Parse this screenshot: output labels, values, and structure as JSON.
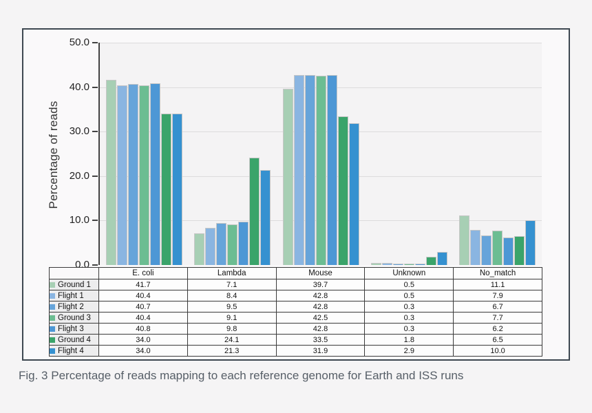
{
  "figure": {
    "caption": "Fig. 3 Percentage of reads mapping to each reference genome for Earth and ISS runs"
  },
  "chart_data": {
    "type": "bar",
    "title": "",
    "xlabel": "",
    "ylabel": "Percentage of reads",
    "ylim": [
      0,
      50
    ],
    "ytick_labels": [
      "0.0",
      "10.0",
      "20.0",
      "30.0",
      "40.0",
      "50.0"
    ],
    "grid": true,
    "legend_position": "table-left-column",
    "categories": [
      "E. coli",
      "Lambda",
      "Mouse",
      "Unknown",
      "No_match"
    ],
    "series": [
      {
        "name": "Ground 1",
        "color": "#a7cfb4",
        "values": [
          41.7,
          7.1,
          39.7,
          0.5,
          11.1
        ]
      },
      {
        "name": "Flight 1",
        "color": "#8ab5e1",
        "values": [
          40.4,
          8.4,
          42.8,
          0.5,
          7.9
        ]
      },
      {
        "name": "Flight 2",
        "color": "#66a4da",
        "values": [
          40.7,
          9.5,
          42.8,
          0.3,
          6.7
        ]
      },
      {
        "name": "Ground 3",
        "color": "#6cbd92",
        "values": [
          40.4,
          9.1,
          42.5,
          0.3,
          7.7
        ]
      },
      {
        "name": "Flight 3",
        "color": "#4d97d5",
        "values": [
          40.8,
          9.8,
          42.8,
          0.3,
          6.2
        ]
      },
      {
        "name": "Ground 4",
        "color": "#3aa46a",
        "values": [
          34.0,
          24.1,
          33.5,
          1.8,
          6.5
        ]
      },
      {
        "name": "Flight 4",
        "color": "#3591d0",
        "values": [
          34.0,
          21.3,
          31.9,
          2.9,
          10.0
        ]
      }
    ],
    "value_format": "one_decimal"
  },
  "colors": {
    "panel_border": "#3d4750",
    "page_bg": "#f5f4f5",
    "plot_bg": "#f4f3f4",
    "gridline": "#dcdbdc",
    "axis": "#424242",
    "table_border": "#3a3a3a",
    "legend_cell_bg": "#ededee",
    "caption_text": "#565e67"
  }
}
